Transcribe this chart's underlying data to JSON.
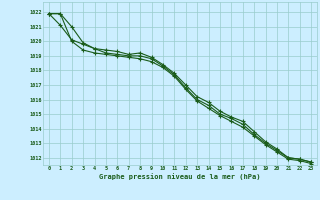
{
  "xlabel": "Graphe pression niveau de la mer (hPa)",
  "bg_color": "#cceeff",
  "grid_color": "#99cccc",
  "line_color": "#1a5c1a",
  "xlim": [
    -0.5,
    23.5
  ],
  "ylim": [
    1011.5,
    1022.7
  ],
  "yticks": [
    1012,
    1013,
    1014,
    1015,
    1016,
    1017,
    1018,
    1019,
    1020,
    1021,
    1022
  ],
  "xticks": [
    0,
    1,
    2,
    3,
    4,
    5,
    6,
    7,
    8,
    9,
    10,
    11,
    12,
    13,
    14,
    15,
    16,
    17,
    18,
    19,
    20,
    21,
    22,
    23
  ],
  "series1": [
    1021.9,
    1021.9,
    1021.0,
    1019.9,
    1019.5,
    1019.4,
    1019.3,
    1019.1,
    1019.2,
    1018.9,
    1018.4,
    1017.8,
    1017.0,
    1016.2,
    1015.8,
    1015.2,
    1014.8,
    1014.5,
    1013.8,
    1013.1,
    1012.6,
    1012.0,
    1011.9,
    1011.7
  ],
  "series2": [
    1021.9,
    1021.1,
    1020.1,
    1019.8,
    1019.5,
    1019.2,
    1019.1,
    1019.0,
    1019.0,
    1018.8,
    1018.3,
    1017.7,
    1016.8,
    1016.0,
    1015.6,
    1015.0,
    1014.7,
    1014.3,
    1013.6,
    1013.0,
    1012.5,
    1012.0,
    1011.9,
    1011.7
  ],
  "series3": [
    1021.9,
    1021.9,
    1020.0,
    1019.4,
    1019.2,
    1019.1,
    1019.0,
    1018.9,
    1018.8,
    1018.6,
    1018.2,
    1017.6,
    1016.7,
    1015.9,
    1015.4,
    1014.9,
    1014.5,
    1014.1,
    1013.5,
    1012.9,
    1012.4,
    1011.9,
    1011.8,
    1011.6
  ]
}
